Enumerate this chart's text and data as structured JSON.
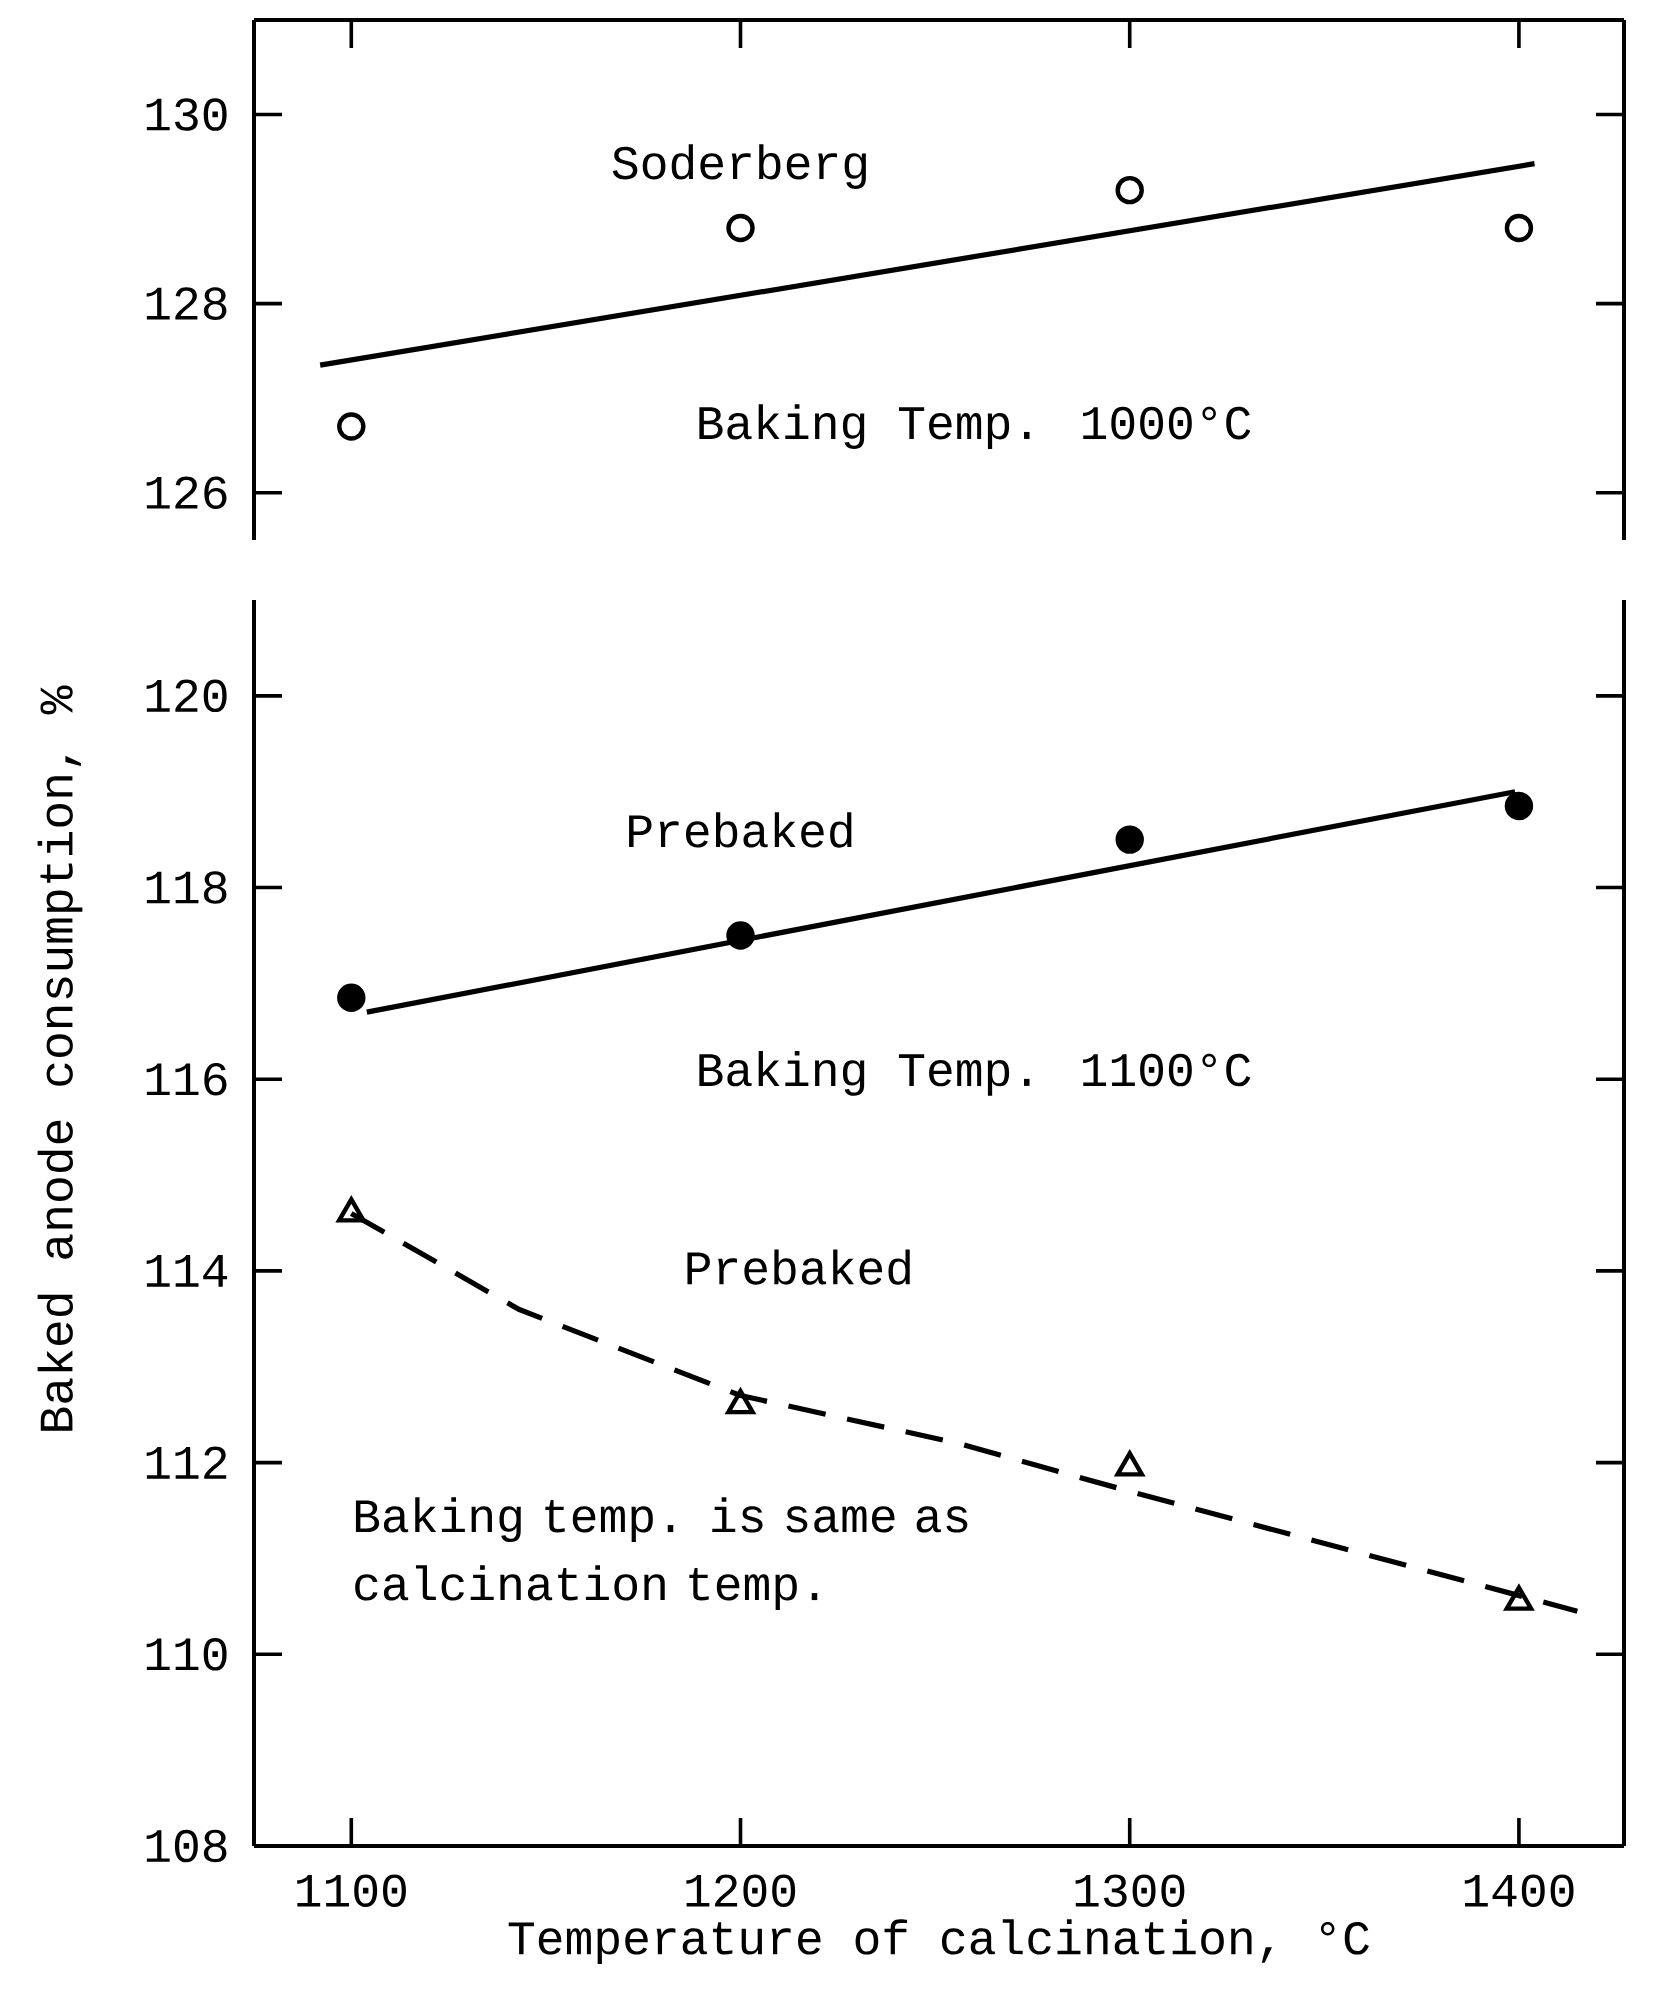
{
  "chart_data": [
    {
      "type": "scatter",
      "marker": "circle",
      "xlim": [
        1075,
        1427
      ],
      "ylim": [
        125.5,
        131
      ],
      "xticks": [
        {
          "value": 1100,
          "label": null
        },
        {
          "value": 1200,
          "label": null
        },
        {
          "value": 1300,
          "label": null
        },
        {
          "value": 1400,
          "label": null
        }
      ],
      "yticks": [
        126,
        128,
        130
      ],
      "tick_labels": "y",
      "annotations": [
        "Baking Temp. 1000°C"
      ],
      "series": [
        {
          "name": "Soderberg",
          "color": "#000000",
          "x": [
            1100,
            1200,
            1300,
            1400
          ],
          "values": [
            126.7,
            128.8,
            129.2,
            128.8
          ]
        },
        {
          "type": "line",
          "marker": "none",
          "line_style": "solid",
          "color": "#000000",
          "x": [
            1092,
            1404
          ],
          "values": [
            127.35,
            129.48
          ]
        }
      ]
    },
    {
      "type": "scatter",
      "marker": "circle",
      "xlim": [
        1075,
        1427
      ],
      "ylim": [
        108,
        121
      ],
      "xticks": [
        1100,
        1200,
        1300,
        1400
      ],
      "yticks": [
        108,
        110,
        112,
        114,
        116,
        118,
        120
      ],
      "xlabel": "Temperature of calcination, °C",
      "ylabel": "Baked anode consumption, %",
      "annotations": [
        "Baking Temp. 1100°C",
        "Baking temp. is same as calcination temp."
      ],
      "series": [
        {
          "name": "Prebaked",
          "color": "#000000",
          "x": [
            1100,
            1200,
            1300,
            1400
          ],
          "values": [
            116.85,
            117.5,
            118.5,
            118.85
          ]
        },
        {
          "type": "line",
          "marker": "none",
          "line_style": "solid",
          "color": "#000000",
          "x": [
            1104,
            1399
          ],
          "values": [
            116.7,
            119.0
          ]
        },
        {
          "name": "Prebaked",
          "marker": "triangle",
          "color": "#000000",
          "x": [
            1100,
            1200,
            1300,
            1400
          ],
          "values": [
            114.6,
            112.6,
            111.95,
            110.55
          ]
        },
        {
          "type": "line",
          "marker": "none",
          "line_style": "dashed",
          "color": "#000000",
          "x": [
            1100,
            1143,
            1200,
            1256,
            1300,
            1415
          ],
          "values": [
            114.6,
            113.6,
            112.7,
            112.2,
            111.7,
            110.45
          ]
        }
      ]
    }
  ]
}
